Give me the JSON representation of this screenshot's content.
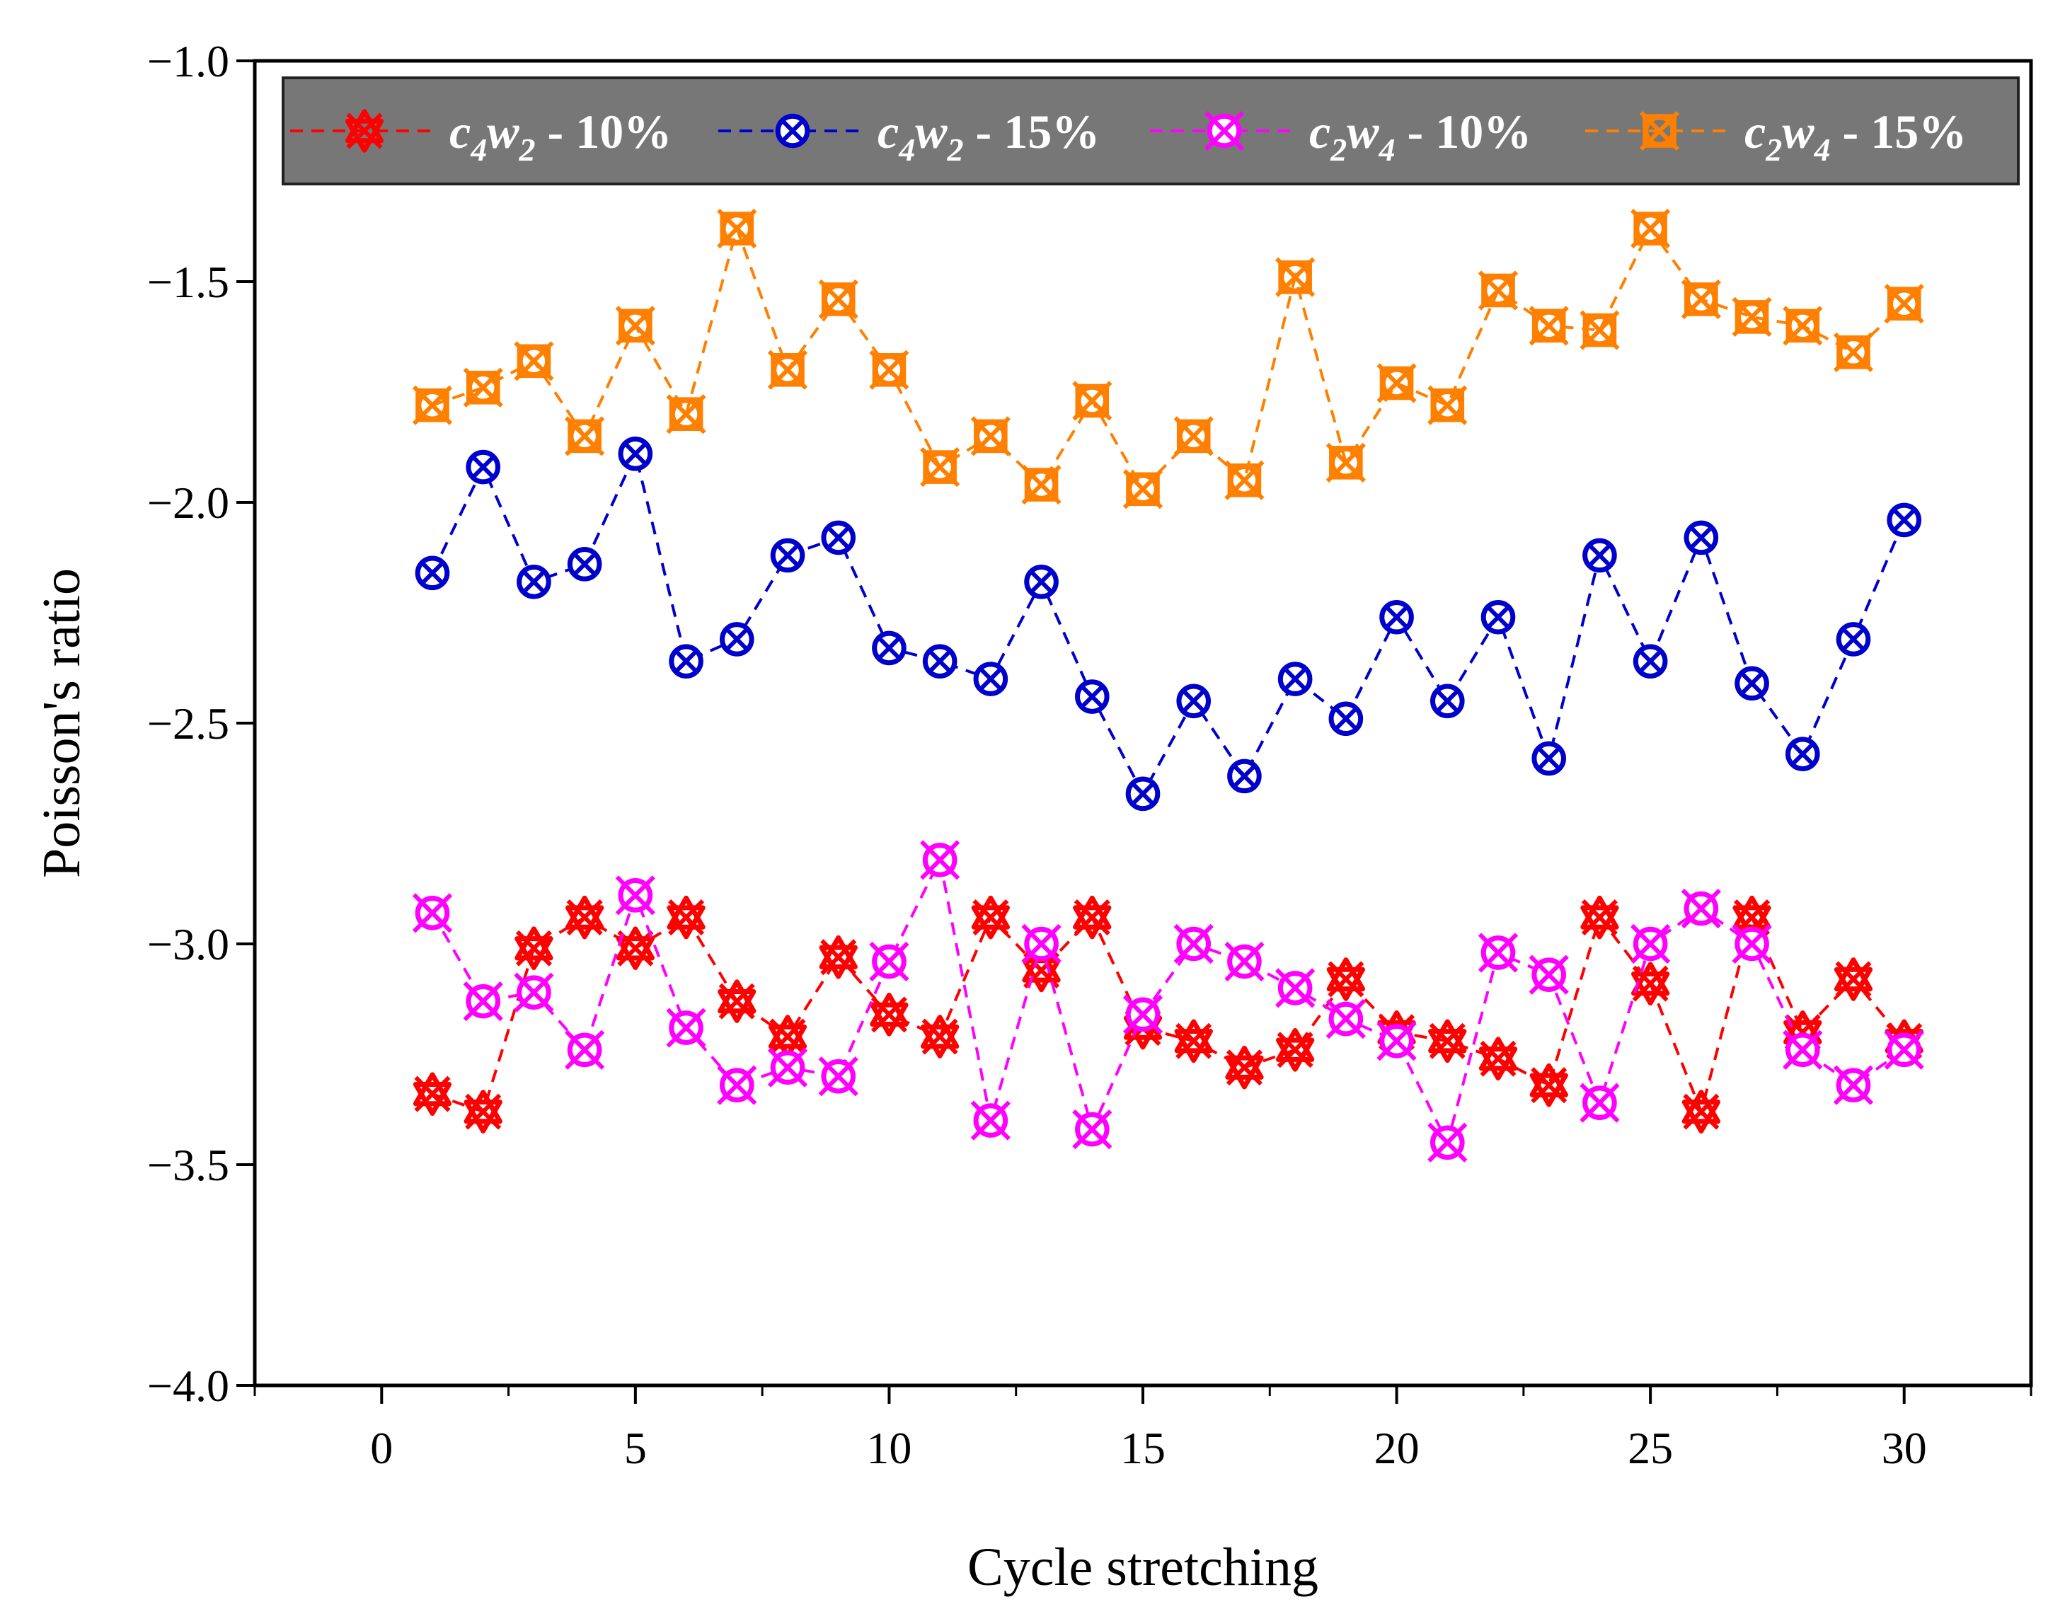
{
  "chart_data": {
    "type": "line",
    "title": "",
    "xlabel": "Cycle stretching",
    "ylabel": "Poisson's ratio",
    "xlim": [
      -2.5,
      32.5
    ],
    "ylim": [
      -4.0,
      -1.0
    ],
    "xticks": [
      0,
      5,
      10,
      15,
      20,
      25,
      30
    ],
    "yticks": [
      -1.0,
      -1.5,
      -2.0,
      -2.5,
      -3.0,
      -3.5,
      -4.0
    ],
    "xtick_labels": [
      "0",
      "5",
      "10",
      "15",
      "20",
      "25",
      "30"
    ],
    "ytick_labels": [
      "−1.0",
      "−1.5",
      "−2.0",
      "−2.5",
      "−3.0",
      "−3.5",
      "−4.0"
    ],
    "grid": false,
    "legend_position": "top",
    "x": [
      1,
      2,
      3,
      4,
      5,
      6,
      7,
      8,
      9,
      10,
      11,
      12,
      13,
      14,
      15,
      16,
      17,
      18,
      19,
      20,
      21,
      22,
      23,
      24,
      25,
      26,
      27,
      28,
      29,
      30
    ],
    "series": [
      {
        "name": "c4w2 - 10%",
        "legend": {
          "base": "c",
          "sub1": "4",
          "mid": "w",
          "sub2": "2",
          "suffix": " - 10%"
        },
        "color": "#ff0000",
        "marker": "star",
        "values": [
          -3.34,
          -3.38,
          -3.01,
          -2.94,
          -3.01,
          -2.94,
          -3.13,
          -3.21,
          -3.03,
          -3.16,
          -3.21,
          -2.94,
          -3.06,
          -2.94,
          -3.19,
          -3.22,
          -3.28,
          -3.24,
          -3.08,
          -3.2,
          -3.22,
          -3.26,
          -3.32,
          -2.94,
          -3.09,
          -3.38,
          -2.94,
          -3.2,
          -3.08,
          -3.22
        ]
      },
      {
        "name": "c4w2 - 15%",
        "legend": {
          "base": "c",
          "sub1": "4",
          "mid": "w",
          "sub2": "2",
          "suffix": " - 15%"
        },
        "color": "#0000cc",
        "marker": "circle-x",
        "values": [
          -2.16,
          -1.92,
          -2.18,
          -2.14,
          -1.89,
          -2.36,
          -2.31,
          -2.12,
          -2.08,
          -2.33,
          -2.36,
          -2.4,
          -2.18,
          -2.44,
          -2.66,
          -2.45,
          -2.62,
          -2.4,
          -2.49,
          -2.26,
          -2.45,
          -2.26,
          -2.58,
          -2.12,
          -2.36,
          -2.08,
          -2.41,
          -2.57,
          -2.31,
          -2.04
        ]
      },
      {
        "name": "c2w4 - 10%",
        "legend": {
          "base": "c",
          "sub1": "2",
          "mid": "w",
          "sub2": "4",
          "suffix": " - 10%"
        },
        "color": "#ff00ff",
        "marker": "circle-x",
        "values": [
          -2.93,
          -3.13,
          -3.11,
          -3.24,
          -2.89,
          -3.19,
          -3.32,
          -3.28,
          -3.3,
          -3.04,
          -2.81,
          -3.4,
          -3.0,
          -3.42,
          -3.16,
          -3.0,
          -3.04,
          -3.1,
          -3.17,
          -3.22,
          -3.45,
          -3.02,
          -3.07,
          -3.36,
          -3.0,
          -2.92,
          -3.0,
          -3.24,
          -3.32,
          -3.24
        ]
      },
      {
        "name": "c2w4 - 15%",
        "legend": {
          "base": "c",
          "sub1": "2",
          "mid": "w",
          "sub2": "4",
          "suffix": " - 15%"
        },
        "color": "#ff8000",
        "marker": "square-x",
        "values": [
          -1.78,
          -1.74,
          -1.68,
          -1.85,
          -1.6,
          -1.8,
          -1.38,
          -1.7,
          -1.54,
          -1.7,
          -1.92,
          -1.85,
          -1.96,
          -1.77,
          -1.97,
          -1.85,
          -1.95,
          -1.49,
          -1.91,
          -1.73,
          -1.78,
          -1.52,
          -1.6,
          -1.61,
          -1.38,
          -1.54,
          -1.58,
          -1.6,
          -1.66,
          -1.55
        ]
      }
    ]
  }
}
